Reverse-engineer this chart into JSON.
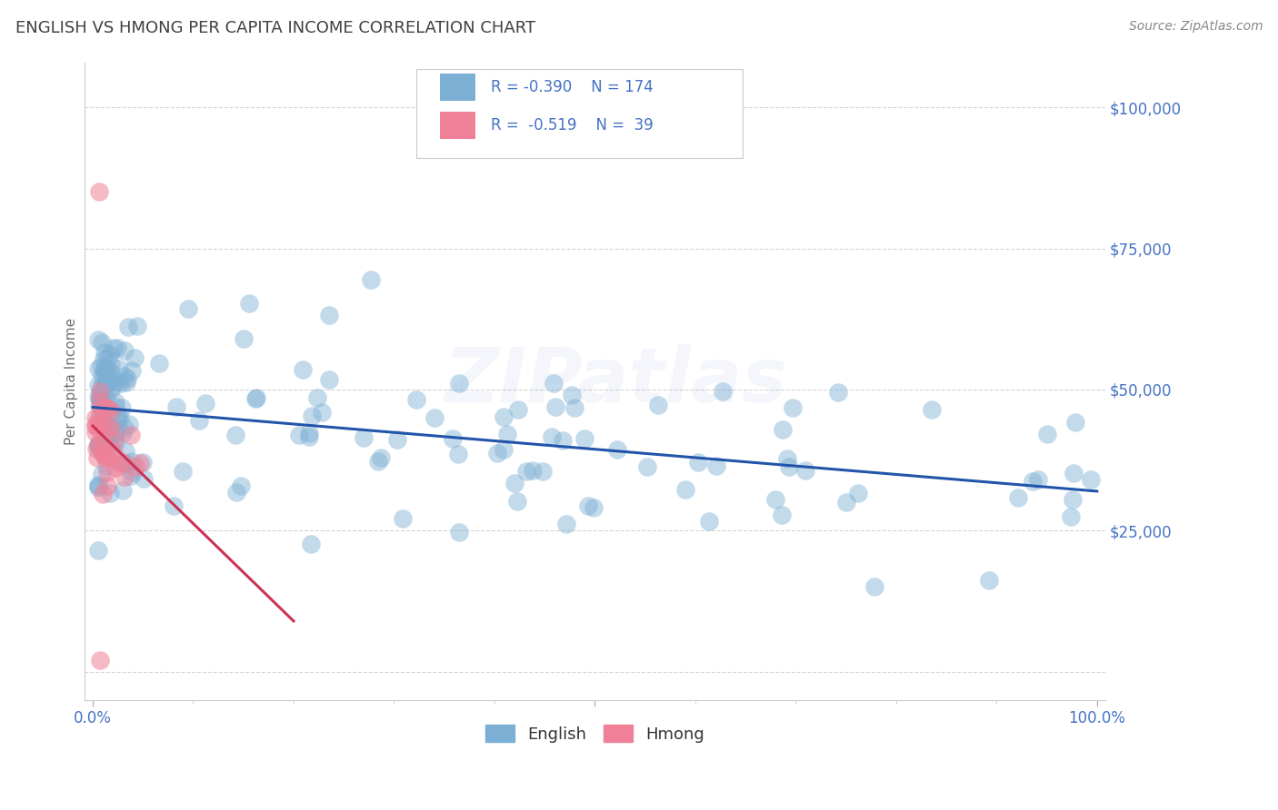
{
  "title": "ENGLISH VS HMONG PER CAPITA INCOME CORRELATION CHART",
  "source_text": "Source: ZipAtlas.com",
  "ylabel": "Per Capita Income",
  "english_color": "#7BAFD4",
  "hmong_color": "#F08098",
  "english_line_color": "#2255AA",
  "hmong_line_color": "#CC3355",
  "tick_label_color": "#4472C4",
  "title_color": "#404040",
  "background_color": "#FFFFFF",
  "grid_color": "#BBBBBB",
  "watermark": "ZIPatlas",
  "legend_text_color": "#4472C4",
  "source_color": "#888888"
}
